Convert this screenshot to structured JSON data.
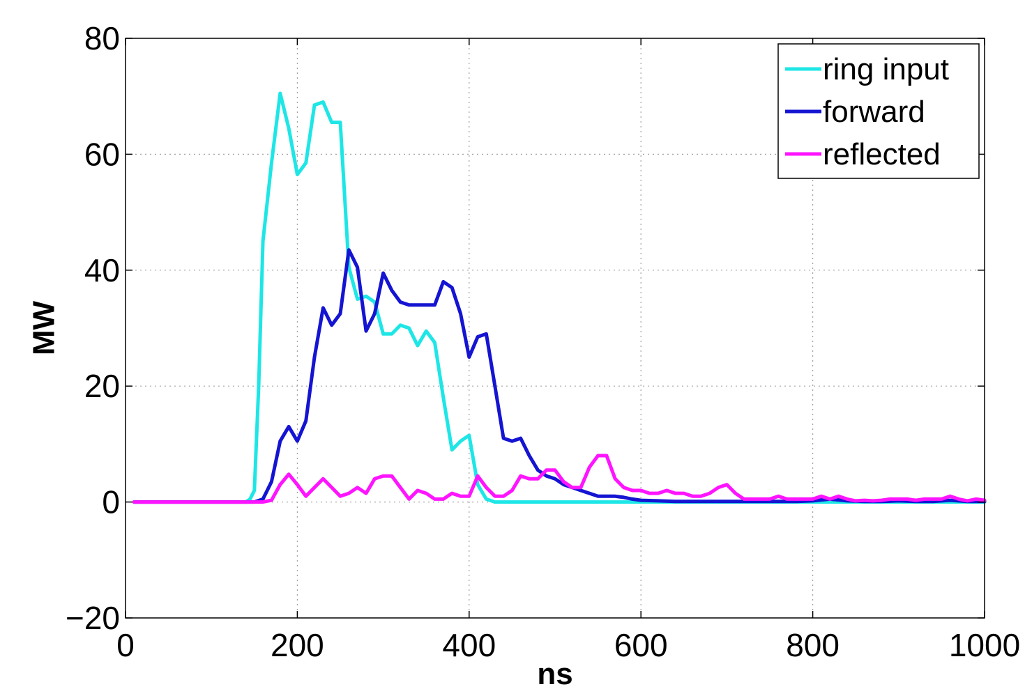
{
  "chart_data": {
    "type": "line",
    "title": "",
    "xlabel": "ns",
    "ylabel": "MW",
    "xlim": [
      0,
      1000
    ],
    "ylim": [
      -20,
      80
    ],
    "xticks": [
      0,
      200,
      400,
      600,
      800,
      1000
    ],
    "yticks": [
      -20,
      0,
      20,
      40,
      60,
      80
    ],
    "xtick_labels": [
      "0",
      "200",
      "400",
      "600",
      "800",
      "1000"
    ],
    "ytick_labels": [
      "−20",
      "0",
      "20",
      "40",
      "60",
      "80"
    ],
    "grid": true,
    "legend_position": "top-right",
    "series": [
      {
        "name": "ring input",
        "color": "#1ee6e6",
        "x": [
          10,
          50,
          100,
          140,
          145,
          150,
          155,
          160,
          170,
          180,
          190,
          200,
          210,
          220,
          230,
          240,
          250,
          260,
          270,
          280,
          290,
          300,
          310,
          320,
          330,
          340,
          350,
          360,
          370,
          380,
          390,
          400,
          410,
          420,
          430,
          440,
          450,
          500,
          550,
          600,
          700,
          800,
          900,
          1000
        ],
        "y": [
          0,
          0,
          0,
          0,
          0.5,
          2,
          20,
          45,
          58.5,
          70.5,
          64.5,
          56.5,
          58.5,
          68.5,
          69,
          65.5,
          65.5,
          40.5,
          35,
          35.5,
          34.5,
          29,
          29,
          30.5,
          30,
          27,
          29.5,
          27.5,
          18,
          9,
          10.5,
          11.5,
          3,
          0.5,
          0,
          0,
          0,
          0,
          0,
          0,
          0,
          0,
          0,
          0
        ]
      },
      {
        "name": "forward",
        "color": "#1414d2",
        "x": [
          10,
          50,
          100,
          150,
          160,
          170,
          180,
          190,
          200,
          210,
          220,
          230,
          240,
          250,
          260,
          270,
          280,
          290,
          300,
          310,
          320,
          330,
          340,
          350,
          360,
          370,
          380,
          390,
          400,
          410,
          420,
          430,
          440,
          450,
          460,
          470,
          480,
          490,
          500,
          510,
          520,
          530,
          540,
          550,
          560,
          570,
          580,
          590,
          600,
          620,
          640,
          660,
          680,
          700,
          720,
          740,
          760,
          780,
          800,
          820,
          840,
          860,
          880,
          900,
          920,
          940,
          960,
          980,
          1000
        ],
        "y": [
          0,
          0,
          0,
          0,
          0.5,
          3.5,
          10.5,
          13,
          10.5,
          14,
          25,
          33.5,
          30.5,
          32.5,
          43.5,
          40.5,
          29.5,
          32.5,
          39.5,
          36.5,
          34.5,
          34,
          34,
          34,
          34,
          38,
          37,
          32.5,
          25,
          28.5,
          29,
          20,
          11,
          10.5,
          11,
          8,
          5.5,
          4.5,
          4,
          3,
          2.5,
          2,
          1.5,
          1,
          1,
          1,
          0.8,
          0.5,
          0.3,
          0.2,
          0.1,
          0.1,
          0.1,
          0.1,
          0.1,
          0.1,
          0.1,
          0.1,
          0.2,
          0.5,
          0.2,
          0.1,
          0.1,
          0.2,
          0.1,
          0.1,
          0.3,
          0.1,
          0.1
        ]
      },
      {
        "name": "reflected",
        "color": "#ff14ff",
        "x": [
          10,
          50,
          100,
          150,
          160,
          170,
          180,
          190,
          200,
          210,
          220,
          230,
          240,
          250,
          260,
          270,
          280,
          290,
          300,
          310,
          320,
          330,
          340,
          350,
          360,
          370,
          380,
          390,
          400,
          410,
          420,
          430,
          440,
          450,
          460,
          470,
          480,
          490,
          500,
          510,
          520,
          530,
          540,
          550,
          560,
          570,
          580,
          590,
          600,
          610,
          620,
          630,
          640,
          650,
          660,
          670,
          680,
          690,
          700,
          710,
          720,
          730,
          740,
          750,
          760,
          770,
          780,
          790,
          800,
          810,
          820,
          830,
          840,
          850,
          860,
          870,
          880,
          890,
          900,
          910,
          920,
          930,
          940,
          950,
          960,
          970,
          980,
          990,
          1000
        ],
        "y": [
          0,
          0,
          0,
          0,
          0,
          0.3,
          3,
          4.8,
          3,
          1,
          2.5,
          4,
          2.5,
          1,
          1.5,
          2.5,
          1.5,
          4,
          4.5,
          4.5,
          2.5,
          0.5,
          2,
          1.5,
          0.5,
          0.5,
          1.5,
          1,
          1,
          4.5,
          2.5,
          1,
          1,
          2,
          4.5,
          4,
          4,
          5.5,
          5.5,
          3.5,
          2.5,
          2.5,
          6,
          8,
          8,
          4,
          2.5,
          2,
          2,
          1.5,
          1.5,
          2,
          1.5,
          1.5,
          1,
          1,
          1.5,
          2.5,
          3,
          1.5,
          0.5,
          0.5,
          0.5,
          0.5,
          1,
          0.5,
          0.5,
          0.5,
          0.5,
          1,
          0.5,
          1,
          0.5,
          0.2,
          0.3,
          0.2,
          0.3,
          0.5,
          0.5,
          0.5,
          0.3,
          0.5,
          0.5,
          0.5,
          1,
          0.5,
          0.2,
          0.5,
          0.3
        ]
      }
    ]
  }
}
